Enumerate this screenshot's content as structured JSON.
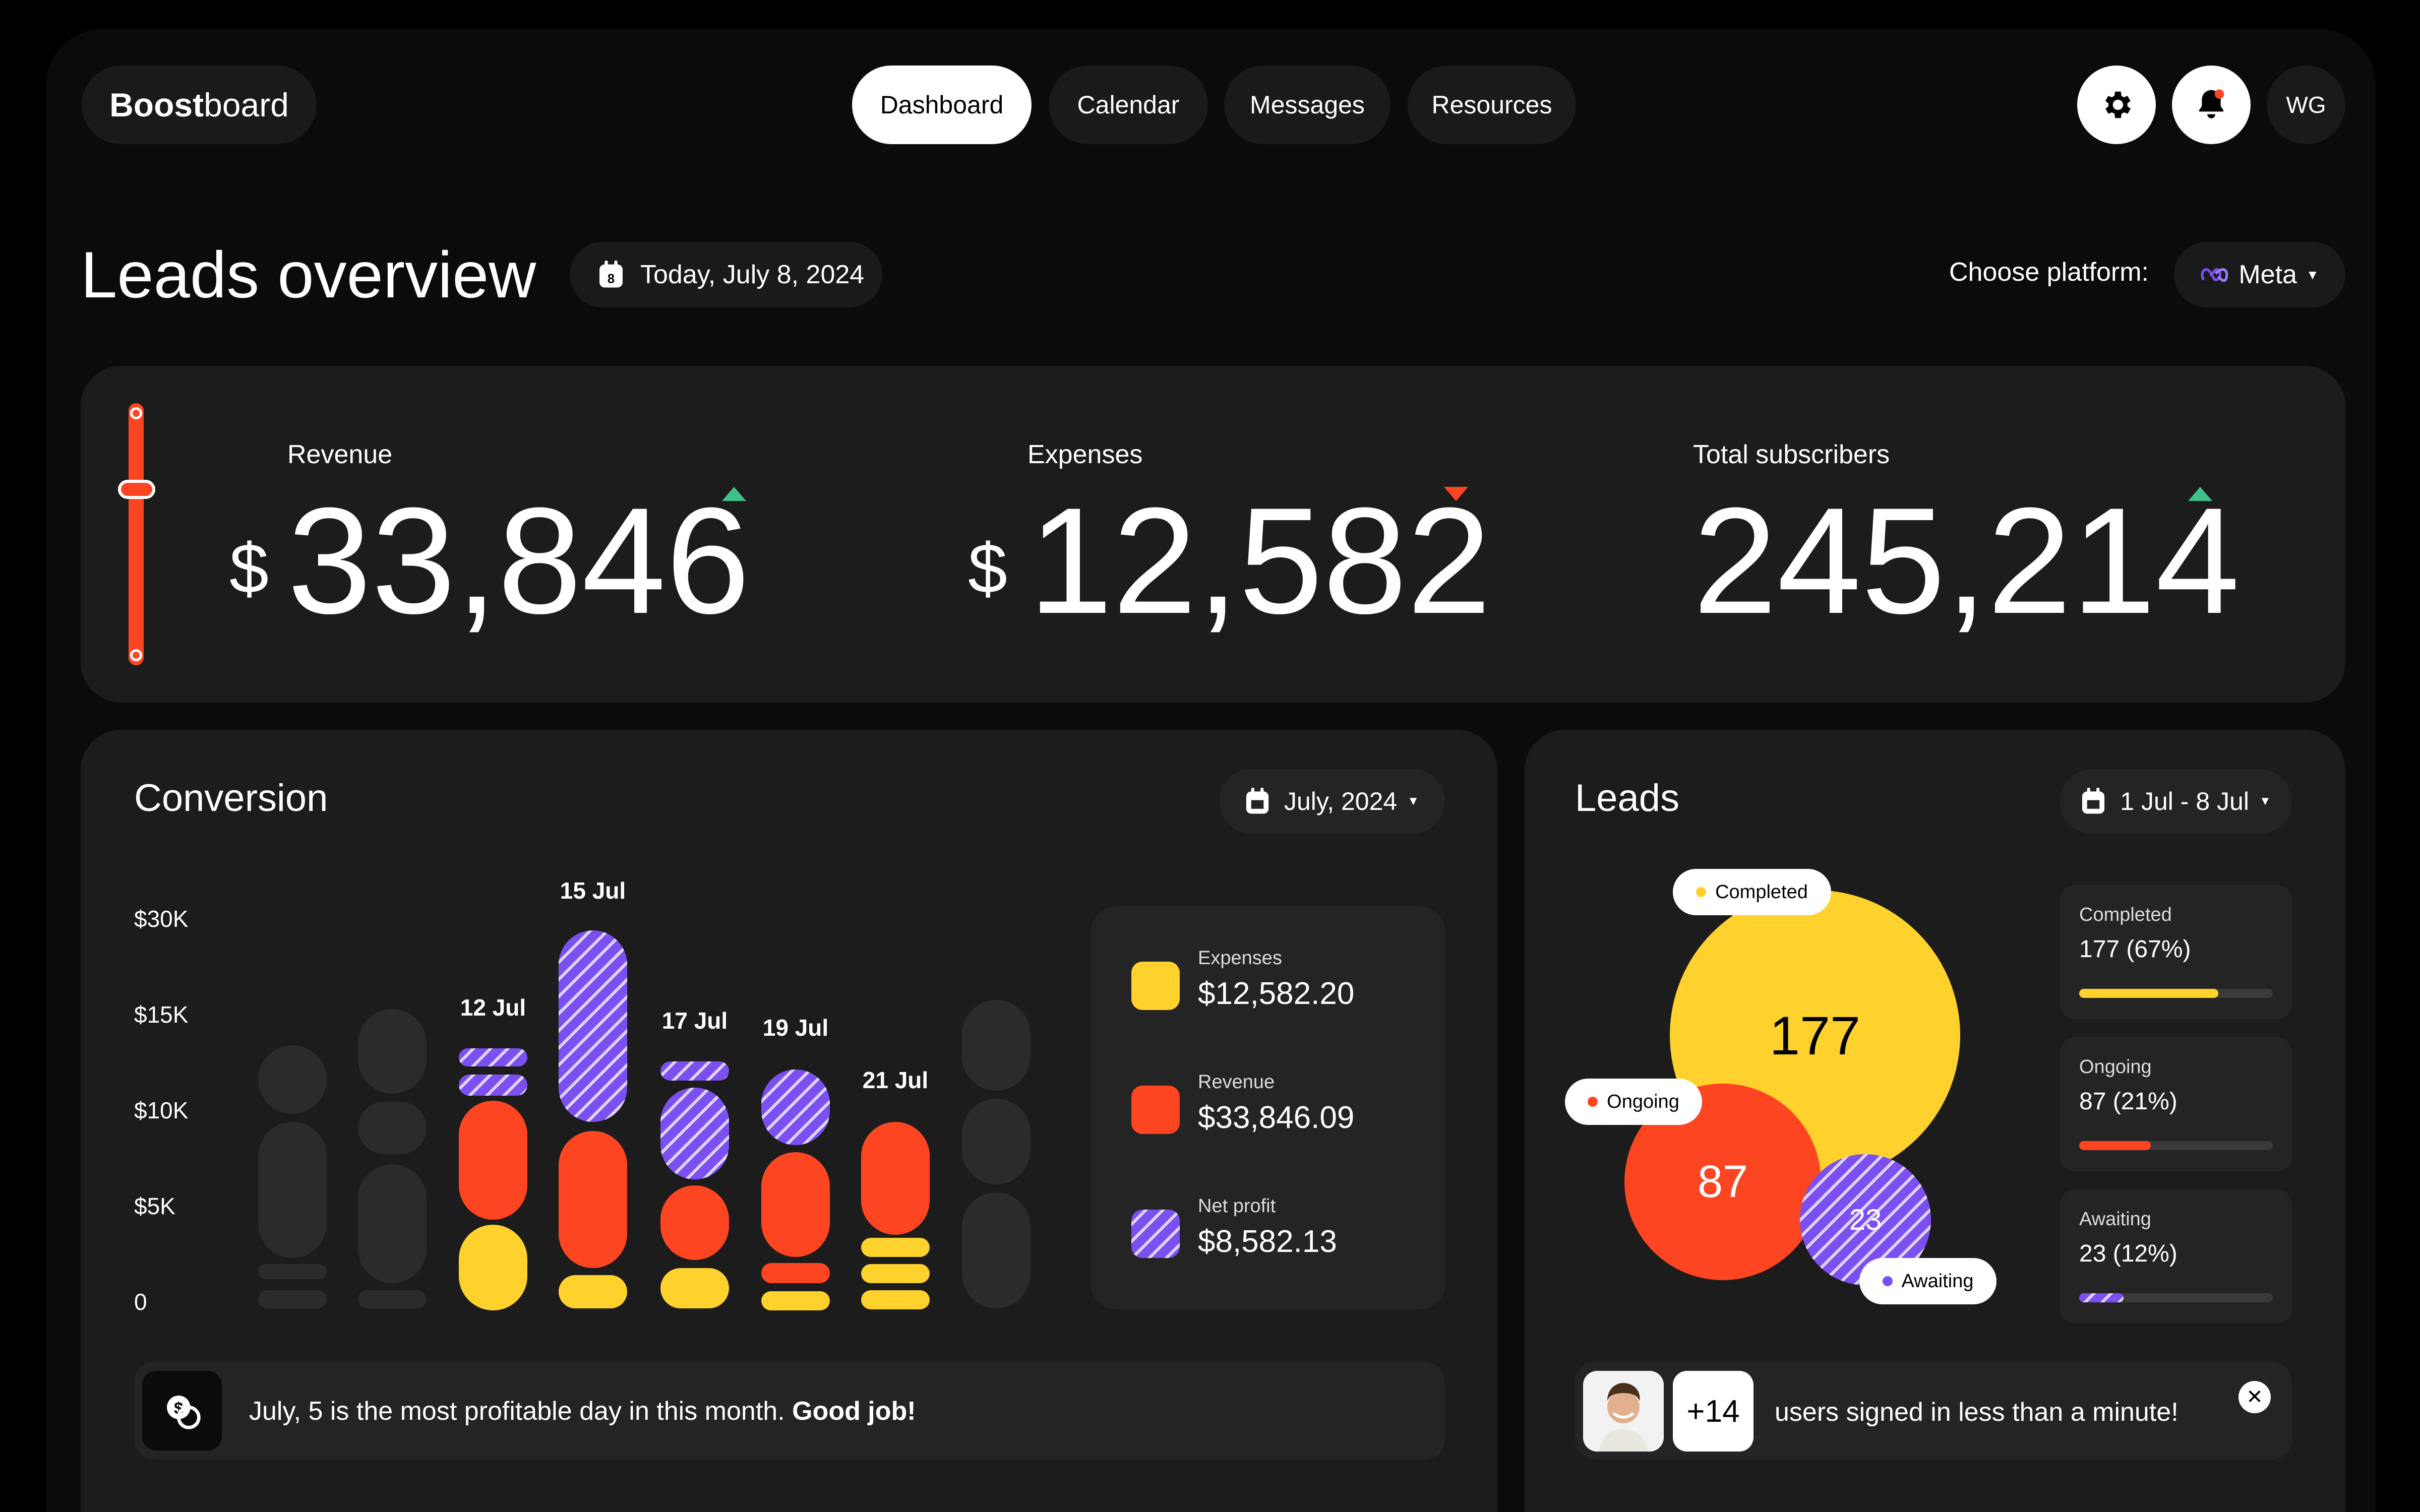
{
  "app": {
    "logo_bold": "Boost",
    "logo_light": "board",
    "user_initials": "WG"
  },
  "nav": {
    "tabs": [
      "Dashboard",
      "Calendar",
      "Messages",
      "Resources"
    ],
    "active": "Dashboard"
  },
  "header": {
    "title": "Leads overview",
    "date": "Today, July 8, 2024",
    "date_icon_day": "8",
    "platform_label": "Choose platform:",
    "platform_value": "Meta"
  },
  "stats": {
    "revenue": {
      "label": "Revenue",
      "currency": "$",
      "value": "33,846",
      "trend": "up"
    },
    "expenses": {
      "label": "Expenses",
      "currency": "$",
      "value": "12,582",
      "trend": "down"
    },
    "subscribers": {
      "label": "Total subscribers",
      "value": "245,214",
      "trend": "up"
    }
  },
  "conversion": {
    "title": "Conversion",
    "period": "July, 2024",
    "legend": [
      {
        "name": "Expenses",
        "value": "$12,582.20",
        "color": "#fed12c"
      },
      {
        "name": "Revenue",
        "value": "$33,846.09",
        "color": "#fe4522"
      },
      {
        "name": "Net profit",
        "value": "$8,582.13",
        "color": "#7b4ff0"
      }
    ],
    "footer_text": "July, 5 is the most profitable day in this month.",
    "footer_bold": "Good job!"
  },
  "chart_data": {
    "type": "bar",
    "y_ticks": [
      "$30K",
      "$15K",
      "$10K",
      "$5K",
      "0"
    ],
    "categories": [
      "",
      "",
      "12 Jul",
      "15 Jul",
      "17 Jul",
      "19 Jul",
      "21 Jul",
      ""
    ],
    "series": [
      {
        "name": "Expenses",
        "values": [
          0,
          0,
          2500,
          1000,
          1200,
          900,
          2100,
          0
        ]
      },
      {
        "name": "Revenue",
        "values": [
          0,
          0,
          5500,
          7500,
          4000,
          5500,
          6000,
          0
        ]
      },
      {
        "name": "Net profit",
        "values": [
          0,
          0,
          2000,
          12000,
          6500,
          4200,
          0,
          0
        ]
      }
    ]
  },
  "leads": {
    "title": "Leads",
    "period": "1 Jul - 8 Jul",
    "bubbles": [
      {
        "name": "Completed",
        "value": "177",
        "color": "#fed12c"
      },
      {
        "name": "Ongoing",
        "value": "87",
        "color": "#fe4522"
      },
      {
        "name": "Awaiting",
        "value": "23",
        "color": "#7b4ff0"
      }
    ],
    "stats": [
      {
        "name": "Completed",
        "value": "177 (67%)",
        "progress": 0.72,
        "color": "#fed12c"
      },
      {
        "name": "Ongoing",
        "value": "87 (21%)",
        "progress": 0.37,
        "color": "#fe4522"
      },
      {
        "name": "Awaiting",
        "value": "23 (12%)",
        "progress": 0.23,
        "color": "#7b4ff0"
      }
    ],
    "signup_count": "+14",
    "signup_text": "users signed in less than a minute!"
  },
  "colors": {
    "yellow": "#fed12c",
    "red": "#fe4522",
    "purple": "#7b4ff0",
    "green": "#3fc28a"
  }
}
